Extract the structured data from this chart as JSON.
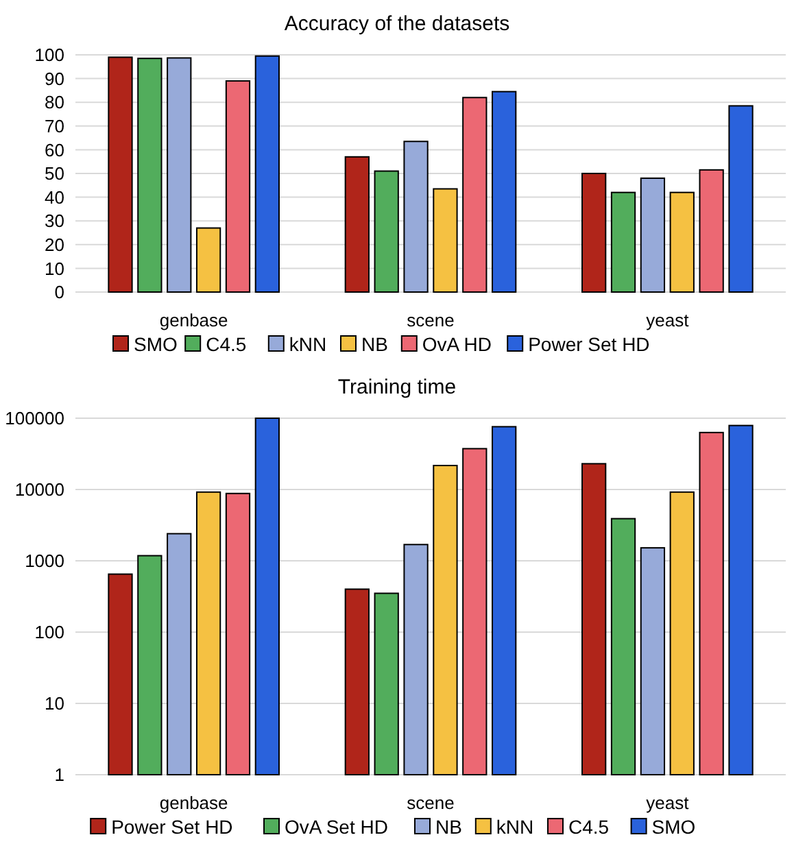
{
  "chart_data": [
    {
      "type": "bar",
      "title": "Accuracy of the datasets",
      "categories": [
        "genbase",
        "scene",
        "yeast"
      ],
      "series": [
        {
          "name": "SMO",
          "color": "#b0251a",
          "values": [
            99,
            57,
            50
          ]
        },
        {
          "name": "C4.5",
          "color": "#52ad5c",
          "values": [
            98.5,
            51,
            42
          ]
        },
        {
          "name": "kNN",
          "color": "#97aad9",
          "values": [
            98.7,
            63.5,
            48
          ]
        },
        {
          "name": "NB",
          "color": "#f5c142",
          "values": [
            27,
            43.5,
            42
          ]
        },
        {
          "name": "OvA HD",
          "color": "#ec6873",
          "values": [
            89,
            82,
            51.5
          ]
        },
        {
          "name": "Power Set HD",
          "color": "#2a62dc",
          "values": [
            99.5,
            84.5,
            78.5
          ]
        }
      ],
      "ylim": [
        0,
        100
      ],
      "yticks": [
        0,
        10,
        20,
        30,
        40,
        50,
        60,
        70,
        80,
        90,
        100
      ],
      "grid": "y",
      "legend": "bottom"
    },
    {
      "type": "bar",
      "title": "Training time",
      "categories": [
        "genbase",
        "scene",
        "yeast"
      ],
      "series": [
        {
          "name": "Power Set HD",
          "color": "#b0251a",
          "values": [
            650,
            400,
            23000
          ]
        },
        {
          "name": "OvA Set HD",
          "color": "#52ad5c",
          "values": [
            1180,
            350,
            3900
          ]
        },
        {
          "name": "NB",
          "color": "#97aad9",
          "values": [
            2400,
            1690,
            1520
          ]
        },
        {
          "name": "kNN",
          "color": "#f5c142",
          "values": [
            9200,
            21700,
            9200
          ]
        },
        {
          "name": "C4.5",
          "color": "#ec6873",
          "values": [
            8800,
            37400,
            63000
          ]
        },
        {
          "name": "SMO",
          "color": "#2a62dc",
          "values": [
            100000,
            76000,
            79000
          ]
        }
      ],
      "ylim": [
        1,
        100000
      ],
      "yticks": [
        1,
        10,
        100,
        1000,
        10000,
        100000
      ],
      "log": true,
      "grid": "y",
      "legend": "bottom"
    }
  ]
}
